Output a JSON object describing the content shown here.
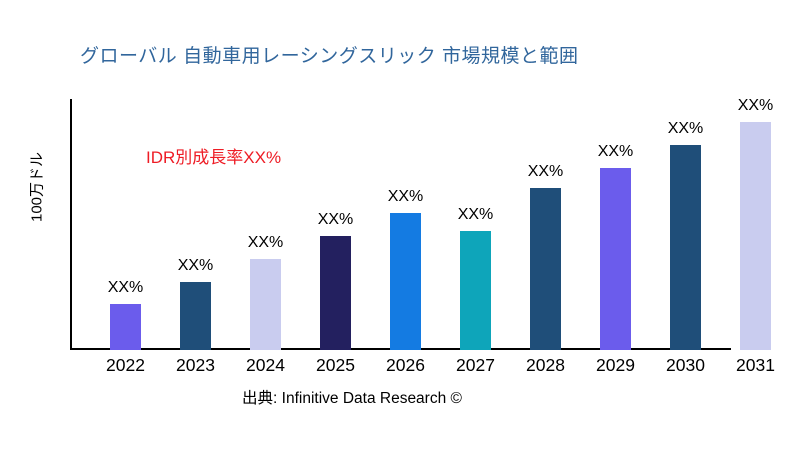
{
  "header": {
    "title": "グローバル 自動車用レーシングスリック 市場規模と範囲",
    "title_color": "#31669c"
  },
  "annotation": {
    "text": "IDR別成長率XX%",
    "color": "#ee1c25"
  },
  "footer": {
    "source": "出典: Infinitive Data Research ©"
  },
  "chart_data": {
    "type": "bar",
    "title": "グローバル 自動車用レーシングスリック 市場規模と範囲",
    "xlabel": "",
    "ylabel": "100万ドル",
    "categories": [
      "2022",
      "2023",
      "2024",
      "2025",
      "2026",
      "2027",
      "2028",
      "2029",
      "2030",
      "2031"
    ],
    "value_labels": [
      "XX%",
      "XX%",
      "XX%",
      "XX%",
      "XX%",
      "XX%",
      "XX%",
      "XX%",
      "XX%",
      "XX%"
    ],
    "relative_heights": [
      20,
      30,
      40,
      50,
      60,
      52,
      71,
      80,
      90,
      100
    ],
    "ylim": [
      0,
      100
    ],
    "y_tick_labels": [],
    "grid": false,
    "legend_position": "none",
    "annotation": "IDR別成長率XX%",
    "bar_colors": [
      "#6b5cec",
      "#1f4e79",
      "#c9ccef",
      "#23205f",
      "#147be2",
      "#0ea5ba",
      "#1f4e79",
      "#6b5cec",
      "#1f4e79",
      "#c9ccef"
    ],
    "axis_color": "#000000"
  }
}
